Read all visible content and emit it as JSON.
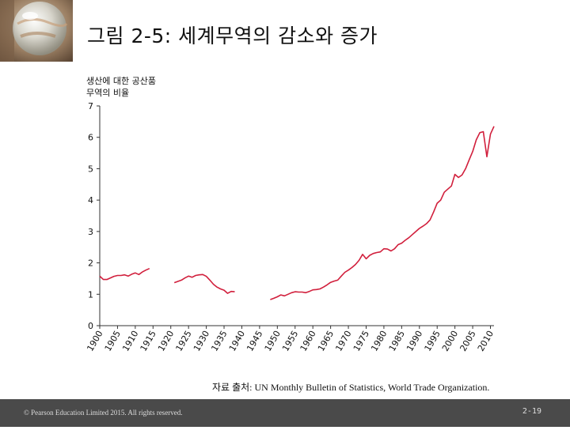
{
  "slide": {
    "title": "그림 2-5: 세계무역의 감소와 증가",
    "source_note": "자료 출처: UN Monthly Bulletin of Statistics, World Trade Organization.",
    "copyright": "© Pearson Education Limited 2015. All rights reserved.",
    "page_number": "2-19"
  },
  "colors": {
    "line": "#d11f3c",
    "axis": "#333333",
    "text": "#111111",
    "footer": "#4a4a4a"
  },
  "chart_data": {
    "type": "line",
    "title": "",
    "ylabel_line1": "생산에 대한 공산품",
    "ylabel_line2": "무역의 비율",
    "xlabel": "",
    "ylim": [
      0,
      7
    ],
    "xlim": [
      1900,
      2011
    ],
    "yticks": [
      0,
      1,
      2,
      3,
      4,
      5,
      6,
      7
    ],
    "xticks": [
      1900,
      1905,
      1910,
      1915,
      1920,
      1925,
      1930,
      1935,
      1940,
      1945,
      1950,
      1955,
      1960,
      1965,
      1970,
      1975,
      1980,
      1985,
      1990,
      1995,
      2000,
      2005,
      2010
    ],
    "grid": false,
    "legend": "none",
    "series": [
      {
        "segments": [
          [
            [
              1900,
              1.58
            ],
            [
              1901,
              1.47
            ],
            [
              1902,
              1.47
            ],
            [
              1903,
              1.52
            ],
            [
              1904,
              1.57
            ],
            [
              1905,
              1.6
            ],
            [
              1906,
              1.6
            ],
            [
              1907,
              1.62
            ],
            [
              1908,
              1.58
            ],
            [
              1909,
              1.64
            ],
            [
              1910,
              1.68
            ],
            [
              1911,
              1.63
            ],
            [
              1912,
              1.71
            ],
            [
              1913,
              1.77
            ],
            [
              1914,
              1.82
            ]
          ],
          [
            [
              1921,
              1.37
            ],
            [
              1922,
              1.41
            ],
            [
              1923,
              1.45
            ],
            [
              1924,
              1.52
            ],
            [
              1925,
              1.58
            ],
            [
              1926,
              1.54
            ],
            [
              1927,
              1.6
            ],
            [
              1928,
              1.62
            ],
            [
              1929,
              1.63
            ],
            [
              1930,
              1.57
            ],
            [
              1931,
              1.45
            ],
            [
              1932,
              1.32
            ],
            [
              1933,
              1.23
            ],
            [
              1934,
              1.17
            ],
            [
              1935,
              1.13
            ],
            [
              1936,
              1.03
            ],
            [
              1937,
              1.09
            ],
            [
              1938,
              1.08
            ]
          ],
          [
            [
              1948,
              0.83
            ],
            [
              1949,
              0.87
            ],
            [
              1950,
              0.92
            ],
            [
              1951,
              0.98
            ],
            [
              1952,
              0.95
            ],
            [
              1953,
              1.0
            ],
            [
              1954,
              1.05
            ],
            [
              1955,
              1.08
            ],
            [
              1956,
              1.07
            ],
            [
              1957,
              1.07
            ],
            [
              1958,
              1.05
            ],
            [
              1959,
              1.09
            ],
            [
              1960,
              1.14
            ],
            [
              1961,
              1.15
            ],
            [
              1962,
              1.17
            ],
            [
              1963,
              1.23
            ],
            [
              1964,
              1.3
            ],
            [
              1965,
              1.38
            ],
            [
              1966,
              1.42
            ],
            [
              1967,
              1.45
            ],
            [
              1968,
              1.58
            ],
            [
              1969,
              1.7
            ],
            [
              1970,
              1.77
            ],
            [
              1971,
              1.85
            ],
            [
              1972,
              1.95
            ],
            [
              1973,
              2.08
            ],
            [
              1974,
              2.27
            ],
            [
              1975,
              2.13
            ],
            [
              1976,
              2.24
            ],
            [
              1977,
              2.3
            ],
            [
              1978,
              2.33
            ],
            [
              1979,
              2.35
            ],
            [
              1980,
              2.45
            ],
            [
              1981,
              2.44
            ],
            [
              1982,
              2.38
            ],
            [
              1983,
              2.45
            ],
            [
              1984,
              2.58
            ],
            [
              1985,
              2.63
            ],
            [
              1986,
              2.72
            ],
            [
              1987,
              2.8
            ],
            [
              1988,
              2.9
            ],
            [
              1989,
              3.0
            ],
            [
              1990,
              3.1
            ],
            [
              1991,
              3.17
            ],
            [
              1992,
              3.25
            ],
            [
              1993,
              3.37
            ],
            [
              1994,
              3.62
            ],
            [
              1995,
              3.9
            ],
            [
              1996,
              4.0
            ],
            [
              1997,
              4.25
            ],
            [
              1998,
              4.35
            ],
            [
              1999,
              4.45
            ],
            [
              2000,
              4.82
            ],
            [
              2001,
              4.72
            ],
            [
              2002,
              4.8
            ],
            [
              2003,
              5.0
            ],
            [
              2004,
              5.28
            ],
            [
              2005,
              5.55
            ],
            [
              2006,
              5.92
            ],
            [
              2007,
              6.15
            ],
            [
              2008,
              6.18
            ],
            [
              2009,
              5.38
            ],
            [
              2010,
              6.1
            ],
            [
              2011,
              6.35
            ]
          ]
        ]
      }
    ]
  }
}
